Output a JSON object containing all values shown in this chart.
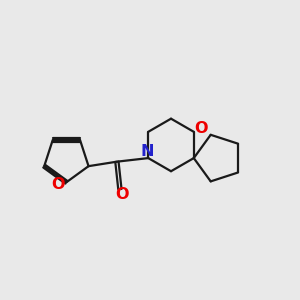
{
  "bg_color": "#e9e9e9",
  "bond_color": "#1a1a1a",
  "O_color": "#ee0000",
  "N_color": "#2222cc",
  "line_width": 1.6,
  "font_size": 11.5,
  "fig_width": 3.0,
  "fig_height": 3.0,
  "dpi": 100,
  "xlim": [
    0,
    10
  ],
  "ylim": [
    0,
    10
  ]
}
